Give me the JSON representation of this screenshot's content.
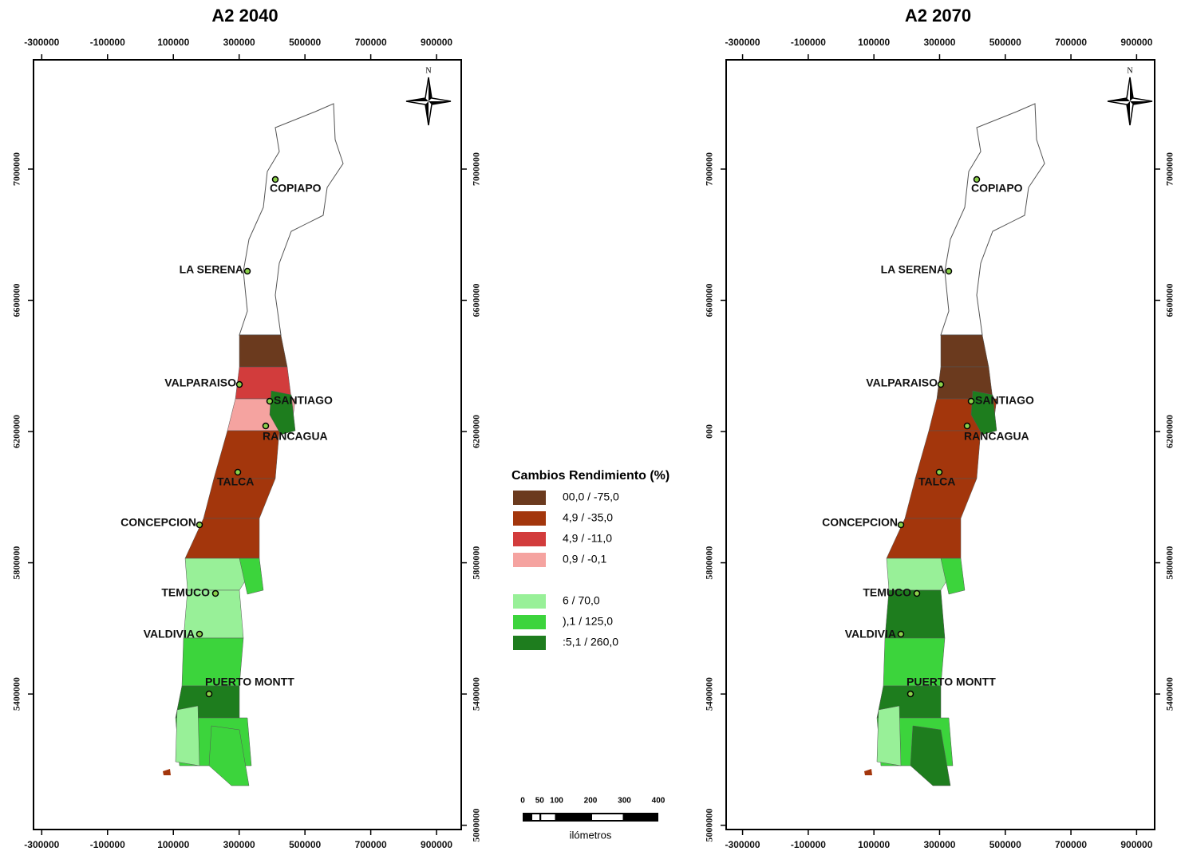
{
  "maps": [
    {
      "title": "A2 2040",
      "xlim": [
        -325000,
        975000
      ],
      "ylim": [
        4987000,
        7333000
      ],
      "xticks": [
        -300000,
        -100000,
        100000,
        300000,
        500000,
        700000,
        900000
      ],
      "yticks_left": [
        7000000,
        6600000,
        6200000,
        5800000,
        5400000
      ],
      "yticks_right": [
        7000000,
        6600000,
        6200000,
        5800000,
        5400000,
        5000000
      ],
      "north": "N",
      "cities": [
        "COPIAPO",
        "LA SERENA",
        "VALPARAISO",
        "SANTIAGO",
        "RANCAGUA",
        "TALCA",
        "CONCEPCION",
        "TEMUCO",
        "VALDIVIA",
        "PUERTO MONTT"
      ]
    },
    {
      "title": "A2 2070",
      "xlim": [
        -350000,
        955000
      ],
      "ylim": [
        4987000,
        7333000
      ],
      "xticks": [
        -300000,
        -100000,
        100000,
        300000,
        500000,
        700000,
        900000
      ],
      "yticks_left": [
        7000000,
        6600000,
        {
          "value": 6200000,
          "label": "000"
        },
        5800000,
        5400000,
        5000000
      ],
      "yticks_right": [
        7000000,
        6600000,
        6200000,
        5800000,
        5400000
      ],
      "north": "N",
      "cities": [
        "COPIAPO",
        "LA SERENA",
        "VALPARAISO",
        "SANTIAGO",
        "RANCAGUA",
        "TALCA",
        "CONCEPCION",
        "TEMUCO",
        "VALDIVIA",
        "PUERTO MONTT"
      ]
    }
  ],
  "legend": {
    "title": "Cambios Rendimiento (%)",
    "items": [
      {
        "label": "00,0 / -75,0",
        "color": "#6b3a1e"
      },
      {
        "label": "4,9 / -35,0",
        "color": "#a3360c"
      },
      {
        "label": "4,9 / -11,0",
        "color": "#d23c3c"
      },
      {
        "label": "0,9 / -0,1",
        "color": "#f5a3a0"
      },
      {
        "label": "6 / 70,0",
        "color": "#98f098"
      },
      {
        "label": "),1 / 125,0",
        "color": "#3cd43c"
      },
      {
        "label": ":5,1 / 260,0",
        "color": "#1e7d1e"
      }
    ]
  },
  "scale_bar": {
    "ticks": [
      0,
      50,
      100,
      200,
      300,
      400
    ],
    "label": "ilómetros"
  }
}
